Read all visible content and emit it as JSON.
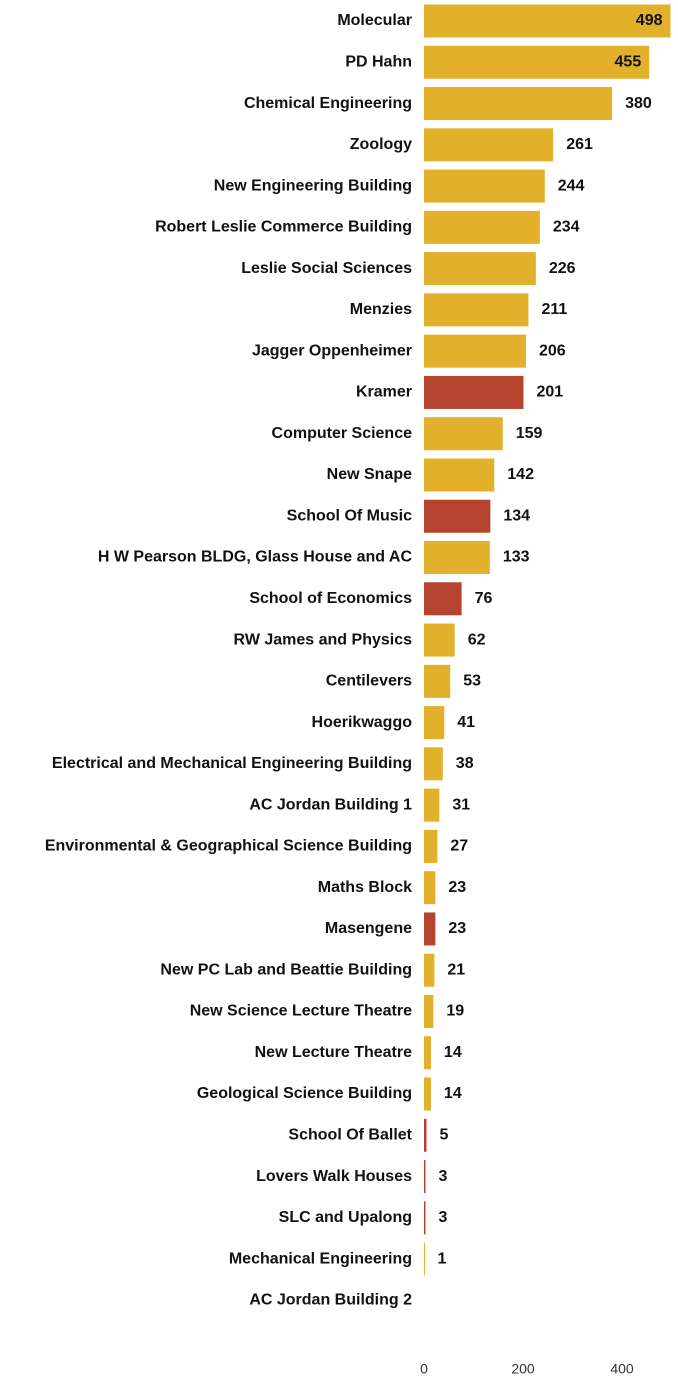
{
  "chart_data": {
    "type": "barh",
    "categories": [
      "Molecular",
      "PD Hahn",
      "Chemical Engineering",
      "Zoology",
      "New Engineering Building",
      "Robert Leslie Commerce Building",
      "Leslie Social Sciences",
      "Menzies",
      "Jagger Oppenheimer",
      "Kramer",
      "Computer Science",
      "New Snape",
      "School Of Music",
      "H W Pearson BLDG, Glass House and AC",
      "School of Economics",
      "RW James and Physics",
      "Centilevers",
      "Hoerikwaggo",
      "Electrical and Mechanical Engineering Building",
      "AC Jordan Building 1",
      "Environmental & Geographical Science Building",
      "Maths Block",
      "Masengene",
      "New PC Lab and Beattie Building",
      "New Science Lecture Theatre",
      "New Lecture Theatre",
      "Geological Science Building",
      "School Of Ballet",
      "Lovers Walk Houses",
      "SLC and Upalong",
      "Mechanical Engineering",
      "AC Jordan Building 2"
    ],
    "values": [
      498,
      455,
      380,
      261,
      244,
      234,
      226,
      211,
      206,
      201,
      159,
      142,
      134,
      133,
      76,
      62,
      53,
      41,
      38,
      31,
      27,
      23,
      23,
      21,
      19,
      14,
      14,
      5,
      3,
      3,
      1,
      null
    ],
    "colors": [
      "#e3b02b",
      "#e3b02b",
      "#e3b02b",
      "#e3b02b",
      "#e3b02b",
      "#e3b02b",
      "#e3b02b",
      "#e3b02b",
      "#e3b02b",
      "#b5432d",
      "#e3b02b",
      "#e3b02b",
      "#b5432d",
      "#e3b02b",
      "#b5432d",
      "#e3b02b",
      "#e3b02b",
      "#e3b02b",
      "#e3b02b",
      "#e3b02b",
      "#e3b02b",
      "#e3b02b",
      "#b5432d",
      "#e3b02b",
      "#e3b02b",
      "#e3b02b",
      "#e3b02b",
      "#b5432d",
      "#b5432d",
      "#b5432d",
      "#e3b02b",
      "#e3b02b"
    ],
    "xlim": [
      0,
      510
    ],
    "xticks": [
      0,
      200,
      400
    ],
    "grid": false
  }
}
